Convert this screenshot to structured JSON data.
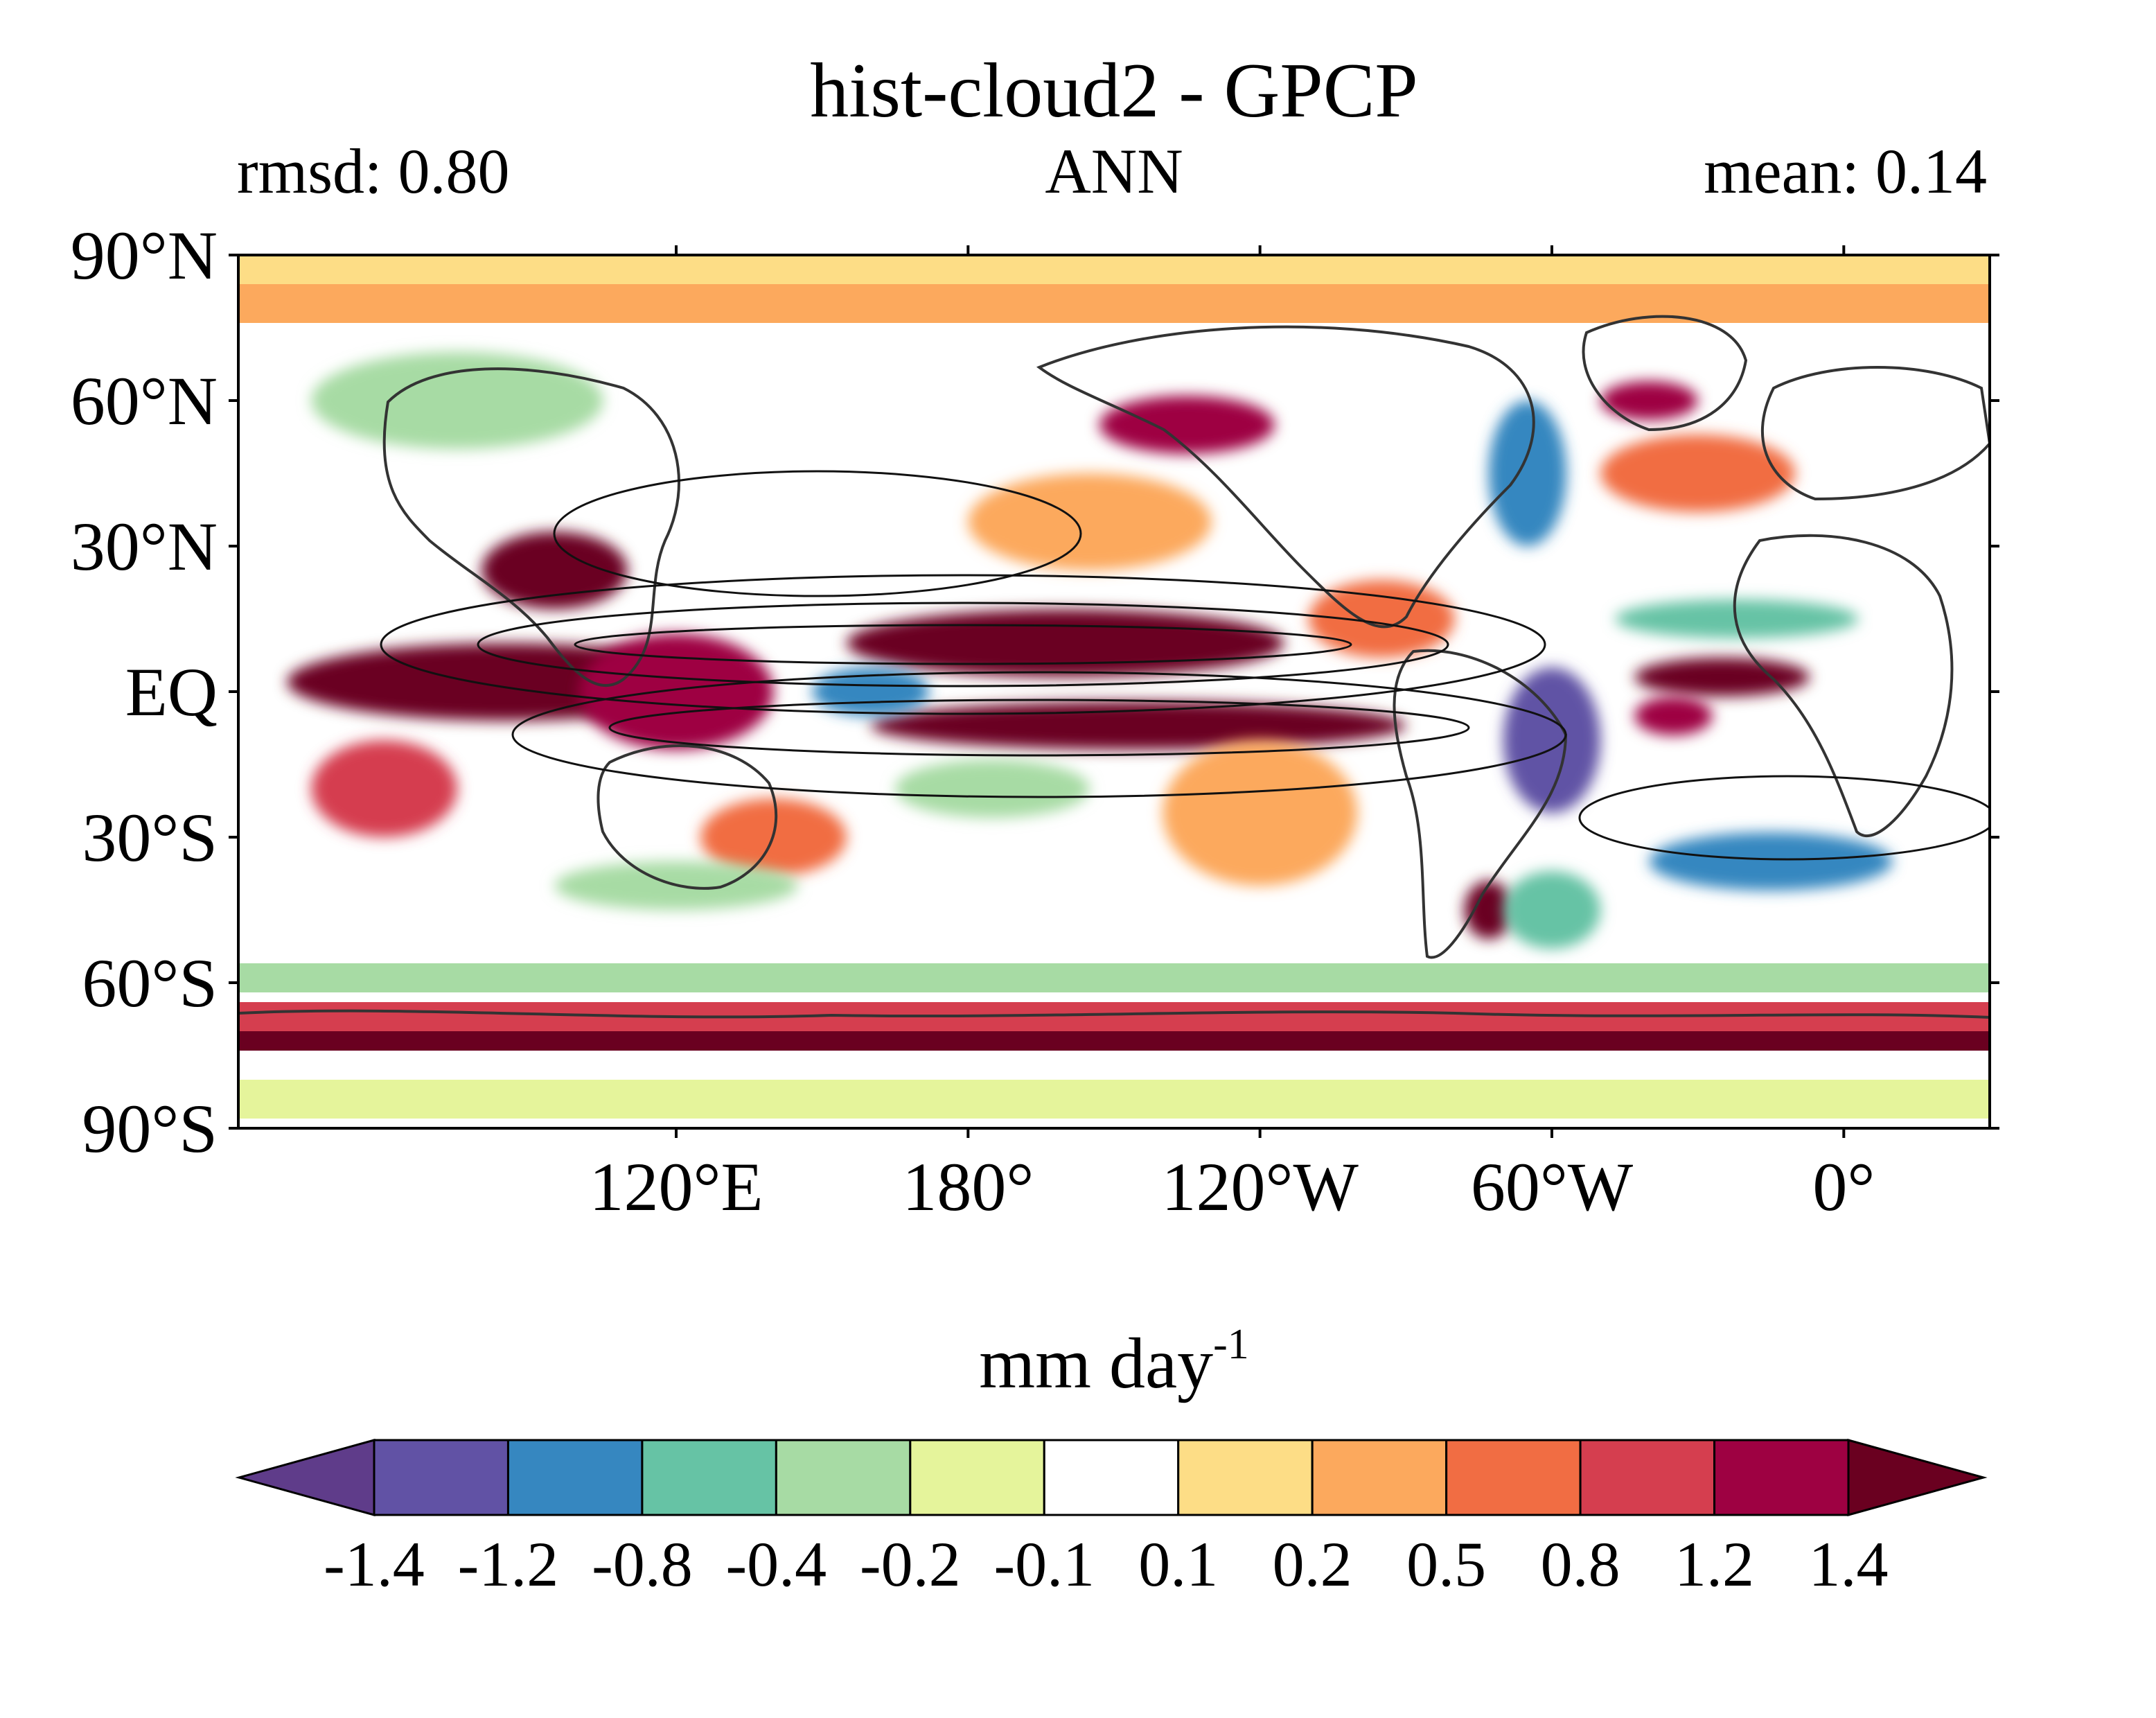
{
  "chart_data": {
    "type": "heatmap",
    "title": "hist-cloud2 - GPCP",
    "subtitle_left": "rmsd: 0.80",
    "subtitle_center": "ANN",
    "subtitle_right": "mean: 0.14",
    "projection": "equirectangular",
    "central_longitude": 150,
    "xlim": [
      30,
      390
    ],
    "ylim": [
      -90,
      90
    ],
    "x_ticks": [
      {
        "value": 120,
        "label": "120°E"
      },
      {
        "value": 180,
        "label": "180°"
      },
      {
        "value": 240,
        "label": "120°W"
      },
      {
        "value": 300,
        "label": "60°W"
      },
      {
        "value": 360,
        "label": "0°"
      }
    ],
    "y_ticks": [
      {
        "value": 90,
        "label": "90°N"
      },
      {
        "value": 60,
        "label": "60°N"
      },
      {
        "value": 30,
        "label": "30°N"
      },
      {
        "value": 0,
        "label": "EQ"
      },
      {
        "value": -30,
        "label": "30°S"
      },
      {
        "value": -60,
        "label": "60°S"
      },
      {
        "value": -90,
        "label": "90°S"
      }
    ],
    "colorbar": {
      "label": "mm day",
      "label_superscript": "-1",
      "extend": "both",
      "levels": [
        "-1.4",
        "-1.2",
        "-0.8",
        "-0.4",
        "-0.2",
        "-0.1",
        "0.1",
        "0.2",
        "0.5",
        "0.8",
        "1.2",
        "1.4"
      ],
      "colors": [
        "#5f3c8a",
        "#6152a5",
        "#3687c0",
        "#66c3a5",
        "#a7dba4",
        "#e5f49b",
        "#ffffff",
        "#fddd86",
        "#fca95d",
        "#f16d43",
        "#d53e4f",
        "#9e0142",
        "#6a0020"
      ]
    },
    "features": [
      {
        "type": "band",
        "lat": [
          84,
          90
        ],
        "lon": [
          30,
          390
        ],
        "value": 0.15
      },
      {
        "type": "band",
        "lat": [
          76,
          84
        ],
        "lon": [
          30,
          390
        ],
        "value": 0.3
      },
      {
        "type": "band",
        "lat": [
          -72,
          -64
        ],
        "lon": [
          30,
          390
        ],
        "value": 1.0
      },
      {
        "type": "band",
        "lat": [
          -74,
          -70
        ],
        "lon": [
          30,
          390
        ],
        "value": 1.5
      },
      {
        "type": "band",
        "lat": [
          -62,
          -56
        ],
        "lon": [
          30,
          390
        ],
        "value": -0.3
      },
      {
        "type": "band",
        "lat": [
          -88,
          -80
        ],
        "lon": [
          30,
          390
        ],
        "value": -0.15
      },
      {
        "type": "blob",
        "lat": 10,
        "lon": 200,
        "rlat": 7,
        "rlon": 45,
        "value": 1.6
      },
      {
        "type": "blob",
        "lat": -7,
        "lon": 215,
        "rlat": 5,
        "rlon": 55,
        "value": 1.6
      },
      {
        "type": "blob",
        "lat": 2,
        "lon": 85,
        "rlat": 8,
        "rlon": 45,
        "value": 1.5
      },
      {
        "type": "blob",
        "lat": 0,
        "lon": 120,
        "rlat": 12,
        "rlon": 20,
        "value": 1.3
      },
      {
        "type": "blob",
        "lat": 25,
        "lon": 95,
        "rlat": 8,
        "rlon": 15,
        "value": 1.5
      },
      {
        "type": "blob",
        "lat": -20,
        "lon": 60,
        "rlat": 10,
        "rlon": 15,
        "value": 1.0
      },
      {
        "type": "blob",
        "lat": 3,
        "lon": 335,
        "rlat": 4,
        "rlon": 18,
        "value": 1.5
      },
      {
        "type": "blob",
        "lat": -5,
        "lon": 325,
        "rlat": 4,
        "rlon": 8,
        "value": 1.3
      },
      {
        "type": "blob",
        "lat": -45,
        "lon": 287,
        "rlat": 6,
        "rlon": 5,
        "value": 1.5
      },
      {
        "type": "blob",
        "lat": 55,
        "lon": 225,
        "rlat": 6,
        "rlon": 18,
        "value": 1.2
      },
      {
        "type": "blob",
        "lat": 60,
        "lon": 320,
        "rlat": 4,
        "rlon": 10,
        "value": 1.2
      },
      {
        "type": "blob",
        "lat": 35,
        "lon": 205,
        "rlat": 10,
        "rlon": 25,
        "value": 0.4
      },
      {
        "type": "blob",
        "lat": 45,
        "lon": 330,
        "rlat": 8,
        "rlon": 20,
        "value": 0.5
      },
      {
        "type": "blob",
        "lat": 15,
        "lon": 265,
        "rlat": 8,
        "rlon": 15,
        "value": 0.5
      },
      {
        "type": "blob",
        "lat": -30,
        "lon": 140,
        "rlat": 8,
        "rlon": 15,
        "value": 0.6
      },
      {
        "type": "blob",
        "lat": -10,
        "lon": 300,
        "rlat": 15,
        "rlon": 10,
        "value": -1.3
      },
      {
        "type": "blob",
        "lat": -35,
        "lon": 345,
        "rlat": 6,
        "rlon": 25,
        "value": -0.9
      },
      {
        "type": "blob",
        "lat": 45,
        "lon": 295,
        "rlat": 15,
        "rlon": 8,
        "value": -0.9
      },
      {
        "type": "blob",
        "lat": 15,
        "lon": 338,
        "rlat": 4,
        "rlon": 25,
        "value": -0.5
      },
      {
        "type": "blob",
        "lat": 60,
        "lon": 75,
        "rlat": 10,
        "rlon": 30,
        "value": -0.35
      },
      {
        "type": "blob",
        "lat": -45,
        "lon": 300,
        "rlat": 8,
        "rlon": 10,
        "value": -0.6
      },
      {
        "type": "blob",
        "lat": 0,
        "lon": 160,
        "rlat": 5,
        "rlon": 12,
        "value": -1.0
      },
      {
        "type": "blob",
        "lat": -20,
        "lon": 185,
        "rlat": 6,
        "rlon": 20,
        "value": -0.3
      },
      {
        "type": "blob",
        "lat": -40,
        "lon": 120,
        "rlat": 5,
        "rlon": 25,
        "value": -0.4
      },
      {
        "type": "blob",
        "lat": -25,
        "lon": 240,
        "rlat": 15,
        "rlon": 20,
        "value": 0.3
      }
    ]
  }
}
